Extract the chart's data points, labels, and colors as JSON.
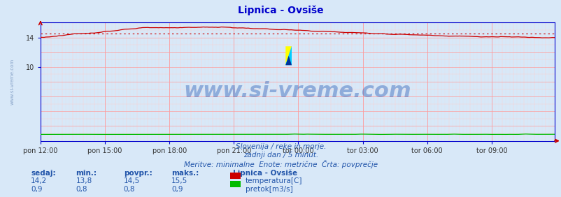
{
  "title": "Lipnica - Ovsiše",
  "title_color": "#0000cc",
  "title_fontsize": 10,
  "bg_color": "#d8e8f8",
  "plot_bg_color": "#d8e8f8",
  "xlabel_ticks": [
    "pon 12:00",
    "pon 15:00",
    "pon 18:00",
    "pon 21:00",
    "tor 00:00",
    "tor 03:00",
    "tor 06:00",
    "tor 09:00"
  ],
  "tick_positions": [
    0,
    36,
    72,
    108,
    144,
    180,
    216,
    252
  ],
  "total_points": 288,
  "ylim_min": 0,
  "ylim_max": 16,
  "ytick_val": 14,
  "ytick_label": "14",
  "grid_color_major": "#ff9999",
  "grid_color_minor": "#ffcccc",
  "temp_color": "#cc0000",
  "flow_color": "#00bb00",
  "avg_line_color": "#cc0000",
  "temp_avg": 14.5,
  "watermark": "www.si-vreme.com",
  "watermark_color": "#3366bb",
  "watermark_alpha": 0.45,
  "watermark_fontsize": 22,
  "left_label": "www.si-vreme.com",
  "left_label_color": "#5577aa",
  "sub1": "Slovenija / reke in morje.",
  "sub2": "zadnji dan / 5 minut.",
  "sub3": "Meritve: minimalne  Enote: metrične  Črta: povprečje",
  "sub_color": "#2255aa",
  "sub_fontsize": 7.5,
  "legend_title": "Lipnica - Ovsiše",
  "legend_temp": "temperatura[C]",
  "legend_flow": "pretok[m3/s]",
  "stats_headers": [
    "sedaj:",
    "min.:",
    "povpr.:",
    "maks.:"
  ],
  "stats_temp": [
    "14,2",
    "13,8",
    "14,5",
    "15,5"
  ],
  "stats_flow": [
    "0,9",
    "0,8",
    "0,8",
    "0,9"
  ],
  "axis_color": "#0000cc",
  "tick_color": "#333333",
  "tick_fontsize": 7,
  "arrow_color": "#cc0000"
}
